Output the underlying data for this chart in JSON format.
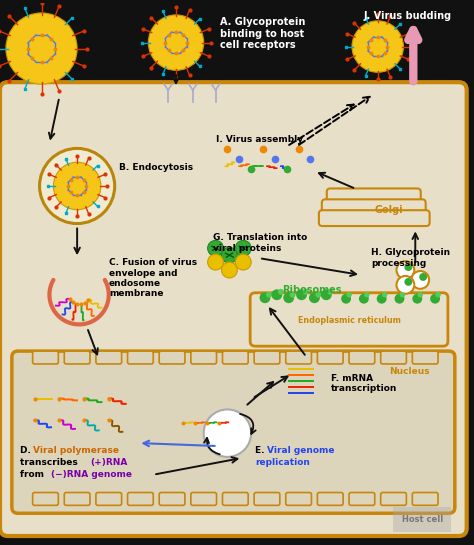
{
  "bg_color": "#111111",
  "cell_bg": "#e8dfc8",
  "nucleus_bg": "#ddd5bb",
  "cell_border": "#c8860a",
  "virus_outer": "#f5c518",
  "virus_spike_ha": "#dd3300",
  "virus_spike_na": "#00aacc",
  "virus_genome": "#5577ee",
  "virus_dot": "#ee8800",
  "labels": {
    "A": "A. Glycoprotein\nbinding to host\ncell receptors",
    "B": "B. Endocytosis",
    "C": "C. Fusion of virus\nenvelope and\nendosome\nmembrane",
    "D_black": "D. Viral polymerase",
    "D_orange": "Viral polymerase",
    "D_line2": "transcribes ",
    "D_purple_plus": "(+)RNA",
    "D_line3": "from ",
    "D_purple_minus": "(−)RNA genome",
    "E_black": "E. ",
    "E_blue": "Viral genome",
    "E_blue2": "replication",
    "F": "F. mRNA\ntranscription",
    "G": "G. Translation into\nviral proteins",
    "H": "H. Glycoprotein\nprocessing",
    "I": "I. Virus assembly",
    "J": "J. Virus budding"
  },
  "rna_colors": [
    "#e8c000",
    "#ff6600",
    "#22aa22",
    "#ee2200",
    "#2244ee",
    "#cc00cc",
    "#00aaaa",
    "#885500"
  ],
  "ribosome_color": "#33aa33",
  "golgi_color": "#c8860a",
  "er_color": "#c8860a",
  "nucleus_label_color": "#c8860a",
  "arrow_color": "#111111",
  "assembly_dot_colors": [
    "#ee8800",
    "#5577ee",
    "#33aa33",
    "#ee8800"
  ],
  "pink_arrow": "#e899b4"
}
